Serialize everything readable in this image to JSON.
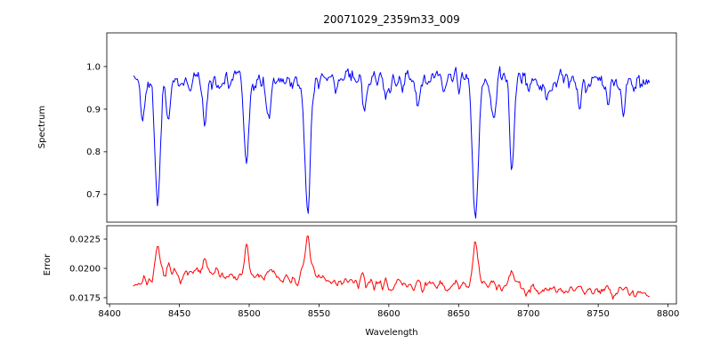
{
  "chart_data": {
    "type": "line",
    "title": "20071029_2359m33_009",
    "xlabel": "Wavelength",
    "grid": false,
    "legend": "none",
    "xlim": [
      8398,
      8806
    ],
    "x_start": 8417,
    "x_end": 8787,
    "x_step": 0.75,
    "xticks": {
      "values": [
        8400,
        8450,
        8500,
        8550,
        8600,
        8650,
        8700,
        8750,
        8800
      ],
      "labels": [
        "8400",
        "8450",
        "8500",
        "8550",
        "8600",
        "8650",
        "8700",
        "8750",
        "8800"
      ]
    },
    "subplots": [
      {
        "name": "spectrum",
        "ylabel": "Spectrum",
        "color": "#0000ff",
        "ylim": [
          0.635,
          1.079
        ],
        "yticks": {
          "values": [
            1.0,
            0.9,
            0.8,
            0.7
          ],
          "labels": [
            "1.0",
            "0.9",
            "0.8",
            "0.7"
          ]
        },
        "continuum": 0.968,
        "noise_sigma": 0.017,
        "noise_seed": 42,
        "absorption_lines": [
          {
            "center": 8424.0,
            "depth": 0.08,
            "width": 1.2
          },
          {
            "center": 8434.5,
            "depth": 0.295,
            "width": 1.9
          },
          {
            "center": 8442.0,
            "depth": 0.1,
            "width": 1.3
          },
          {
            "center": 8468.0,
            "depth": 0.125,
            "width": 1.4
          },
          {
            "center": 8498.0,
            "depth": 0.205,
            "width": 1.8
          },
          {
            "center": 8514.0,
            "depth": 0.095,
            "width": 1.4
          },
          {
            "center": 8542.0,
            "depth": 0.315,
            "width": 2.1
          },
          {
            "center": 8582.0,
            "depth": 0.055,
            "width": 1.3
          },
          {
            "center": 8598.0,
            "depth": 0.05,
            "width": 1.2
          },
          {
            "center": 8621.0,
            "depth": 0.065,
            "width": 1.3
          },
          {
            "center": 8662.0,
            "depth": 0.325,
            "width": 2.1
          },
          {
            "center": 8675.0,
            "depth": 0.1,
            "width": 1.4
          },
          {
            "center": 8688.0,
            "depth": 0.195,
            "width": 1.7
          },
          {
            "center": 8713.0,
            "depth": 0.055,
            "width": 1.2
          },
          {
            "center": 8736.0,
            "depth": 0.045,
            "width": 1.2
          },
          {
            "center": 8757.0,
            "depth": 0.075,
            "width": 1.3
          },
          {
            "center": 8768.0,
            "depth": 0.085,
            "width": 1.3
          }
        ]
      },
      {
        "name": "error",
        "ylabel": "Error",
        "color": "#ff0000",
        "ylim": [
          0.01697,
          0.02364
        ],
        "yticks": {
          "values": [
            0.0225,
            0.02,
            0.0175
          ],
          "labels": [
            "0.0225",
            "0.0200",
            "0.0175"
          ]
        },
        "noise_sigma": 0.00032,
        "noise_seed": 7,
        "baseline_points": [
          [
            8417,
            0.0187
          ],
          [
            8437,
            0.0193
          ],
          [
            8465,
            0.0196
          ],
          [
            8500,
            0.0193
          ],
          [
            8540,
            0.0191
          ],
          [
            8575,
            0.0188
          ],
          [
            8605,
            0.0186
          ],
          [
            8635,
            0.0184
          ],
          [
            8660,
            0.0186
          ],
          [
            8695,
            0.0184
          ],
          [
            8725,
            0.0182
          ],
          [
            8755,
            0.0181
          ],
          [
            8775,
            0.018
          ],
          [
            8787,
            0.0176
          ]
        ],
        "spikes": [
          {
            "center": 8434.5,
            "height": 0.0021,
            "width": 1.7
          },
          {
            "center": 8442.0,
            "height": 0.0006,
            "width": 1.3
          },
          {
            "center": 8468.0,
            "height": 0.0009,
            "width": 1.4
          },
          {
            "center": 8498.0,
            "height": 0.0023,
            "width": 1.6
          },
          {
            "center": 8514.0,
            "height": 0.0007,
            "width": 1.3
          },
          {
            "center": 8542.0,
            "height": 0.0038,
            "width": 1.8
          },
          {
            "center": 8582.0,
            "height": 0.0004,
            "width": 1.2
          },
          {
            "center": 8621.0,
            "height": 0.0004,
            "width": 1.2
          },
          {
            "center": 8662.0,
            "height": 0.0034,
            "width": 1.8
          },
          {
            "center": 8675.0,
            "height": 0.0006,
            "width": 1.3
          },
          {
            "center": 8688.0,
            "height": 0.0013,
            "width": 1.5
          },
          {
            "center": 8757.0,
            "height": 0.0004,
            "width": 1.2
          },
          {
            "center": 8768.0,
            "height": 0.0005,
            "width": 1.2
          }
        ]
      }
    ]
  }
}
